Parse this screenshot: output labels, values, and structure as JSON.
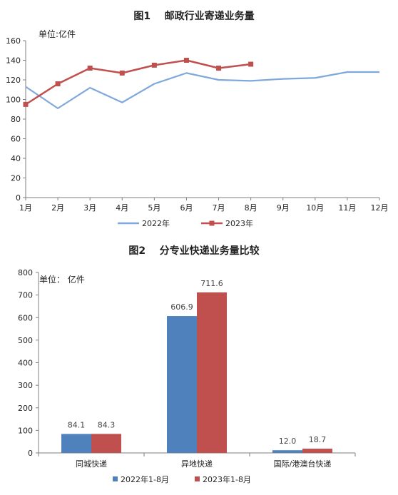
{
  "chart_data": [
    {
      "type": "line",
      "title": "图1    邮政行业寄递业务量",
      "unit_label": "单位:亿件",
      "categories": [
        "1月",
        "2月",
        "3月",
        "4月",
        "5月",
        "6月",
        "7月",
        "8月",
        "9月",
        "10月",
        "11月",
        "12月"
      ],
      "ylim": [
        0,
        160
      ],
      "yticks": [
        0,
        20,
        40,
        60,
        80,
        100,
        120,
        140,
        160
      ],
      "legend_position": "bottom",
      "series": [
        {
          "name": "2022年",
          "color": "#7fa8dc",
          "marker": false,
          "values": [
            113,
            91,
            112,
            97,
            116,
            127,
            120,
            119,
            121,
            122,
            128,
            128
          ]
        },
        {
          "name": "2023年",
          "color": "#c0504d",
          "marker": true,
          "values": [
            95,
            116,
            132,
            127,
            135,
            140,
            132,
            136,
            null,
            null,
            null,
            null
          ]
        }
      ]
    },
    {
      "type": "bar",
      "title": "图2    分专业快递业务量比较",
      "unit_label": "单位： 亿件",
      "categories": [
        "同城快递",
        "异地快递",
        "国际/港澳台快递"
      ],
      "ylim": [
        0,
        800
      ],
      "yticks": [
        0,
        100,
        200,
        300,
        400,
        500,
        600,
        700,
        800
      ],
      "legend_position": "bottom",
      "series": [
        {
          "name": "2022年1-8月",
          "color": "#4f81bd",
          "values": [
            84.1,
            606.9,
            12.0
          ],
          "labels": [
            "84.1",
            "606.9",
            "12.0"
          ]
        },
        {
          "name": "2023年1-8月",
          "color": "#c0504d",
          "values": [
            84.3,
            711.6,
            18.7
          ],
          "labels": [
            "84.3",
            "711.6",
            "18.7"
          ]
        }
      ]
    }
  ]
}
